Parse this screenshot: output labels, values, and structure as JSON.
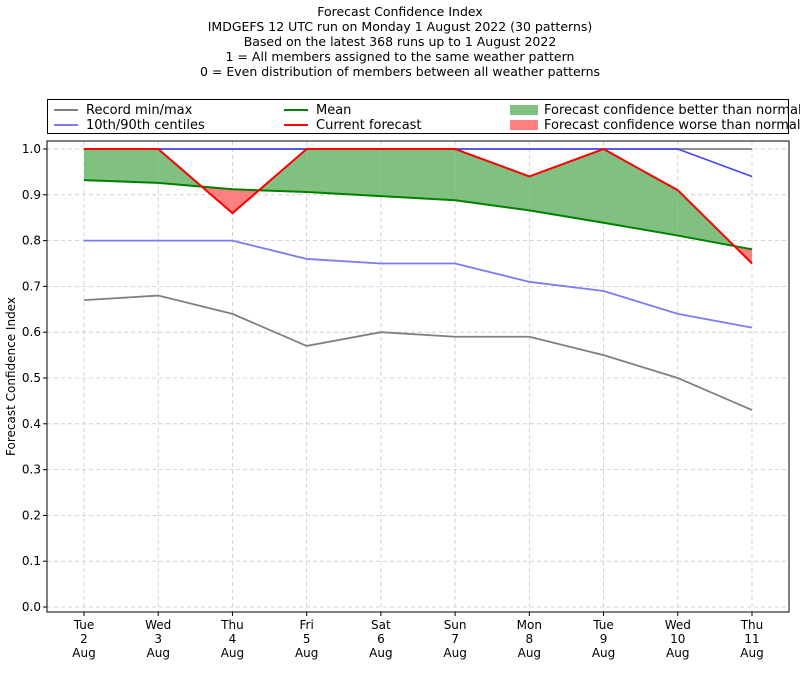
{
  "title_lines": [
    "Forecast Confidence Index",
    "IMDGEFS 12 UTC run on Monday 1 August 2022 (30 patterns)",
    "Based on the latest 368 runs up to 1 August 2022",
    "1 = All members assigned to the same weather pattern",
    "0 = Even distribution of members between all weather patterns"
  ],
  "legend": [
    {
      "label": "Record min/max",
      "color": "#808080",
      "kind": "line"
    },
    {
      "label": "10th/90th centiles",
      "color": "#7b7bf5",
      "kind": "line"
    },
    {
      "label": "Mean",
      "color": "#008000",
      "kind": "line"
    },
    {
      "label": "Current forecast",
      "color": "#ff0000",
      "kind": "line"
    },
    {
      "label": "Forecast confidence better than normal",
      "color": "#80c080",
      "kind": "patch"
    },
    {
      "label": "Forecast confidence worse than normal",
      "color": "#ff8080",
      "kind": "patch"
    }
  ],
  "chart_data": {
    "type": "line",
    "ylabel": "Forecast Confidence Index",
    "ylim": [
      0,
      1
    ],
    "yticks": [
      "0.0",
      "0.1",
      "0.2",
      "0.3",
      "0.4",
      "0.5",
      "0.6",
      "0.7",
      "0.8",
      "0.9",
      "1.0"
    ],
    "grid": true,
    "categories": [
      [
        "Tue",
        "2",
        "Aug"
      ],
      [
        "Wed",
        "3",
        "Aug"
      ],
      [
        "Thu",
        "4",
        "Aug"
      ],
      [
        "Fri",
        "5",
        "Aug"
      ],
      [
        "Sat",
        "6",
        "Aug"
      ],
      [
        "Sun",
        "7",
        "Aug"
      ],
      [
        "Mon",
        "8",
        "Aug"
      ],
      [
        "Tue",
        "9",
        "Aug"
      ],
      [
        "Wed",
        "10",
        "Aug"
      ],
      [
        "Thu",
        "11",
        "Aug"
      ]
    ],
    "series": [
      {
        "name": "Record min/max",
        "role": "record_min",
        "color": "#808080",
        "values": [
          0.67,
          0.68,
          0.64,
          0.57,
          0.6,
          0.59,
          0.59,
          0.55,
          0.5,
          0.43
        ]
      },
      {
        "name": "Record min/max",
        "role": "record_max",
        "color": "#808080",
        "values": [
          1.0,
          1.0,
          1.0,
          1.0,
          1.0,
          1.0,
          1.0,
          1.0,
          1.0,
          1.0
        ]
      },
      {
        "name": "10th/90th centiles",
        "role": "p10",
        "color": "#7b7bf5",
        "values": [
          0.8,
          0.8,
          0.8,
          0.76,
          0.75,
          0.75,
          0.71,
          0.69,
          0.64,
          0.61
        ]
      },
      {
        "name": "10th/90th centiles",
        "role": "p90",
        "color": "#4040ff",
        "values": [
          1.0,
          1.0,
          1.0,
          1.0,
          1.0,
          1.0,
          1.0,
          1.0,
          1.0,
          0.94
        ]
      },
      {
        "name": "Mean",
        "role": "mean",
        "color": "#008000",
        "values": [
          0.932,
          0.926,
          0.912,
          0.906,
          0.897,
          0.888,
          0.866,
          0.839,
          0.811,
          0.781
        ]
      },
      {
        "name": "Current forecast",
        "role": "current",
        "color": "#ff0000",
        "values": [
          1.0,
          1.0,
          0.86,
          1.0,
          1.0,
          1.0,
          0.94,
          1.0,
          0.91,
          0.75
        ]
      }
    ],
    "fill_better_color": "#80c080",
    "fill_worse_color": "#ff8080"
  }
}
